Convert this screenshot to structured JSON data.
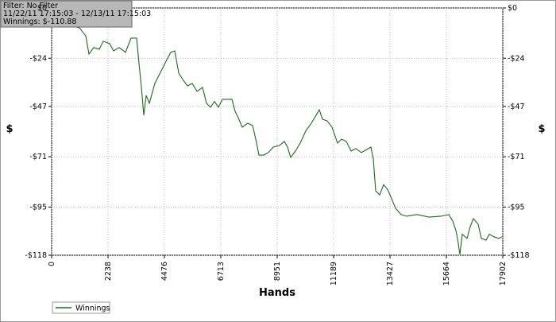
{
  "chart_data": {
    "type": "line",
    "info": [
      "Filter: No Filter",
      "11/22/11 17:15:03 - 12/13/11 17:15:03",
      "Winnings: $-110.88"
    ],
    "xlabel": "Hands",
    "ylabel": "$",
    "xlim": [
      0,
      17902
    ],
    "xticks": [
      0,
      2238,
      4476,
      6713,
      8951,
      11189,
      13427,
      15664,
      17902
    ],
    "ylim": [
      -118,
      0
    ],
    "yticks": [
      {
        "value": 0,
        "label": "$0"
      },
      {
        "value": -24,
        "label": "-$24"
      },
      {
        "value": -47,
        "label": "-$47"
      },
      {
        "value": -71,
        "label": "-$71"
      },
      {
        "value": -95,
        "label": "-$95"
      },
      {
        "value": -118,
        "label": "-$118"
      }
    ],
    "grid": true,
    "legend": "bottom-left",
    "x": [
      882,
      1103,
      1355,
      1481,
      1670,
      1891,
      2049,
      2301,
      2458,
      2679,
      2931,
      3152,
      3373,
      3468,
      3562,
      3657,
      3751,
      3877,
      4097,
      4255,
      4413,
      4571,
      4728,
      4886,
      5044,
      5201,
      5390,
      5580,
      5769,
      5989,
      6146,
      6304,
      6462,
      6620,
      6777,
      6935,
      7154,
      7280,
      7406,
      7564,
      7785,
      7974,
      8100,
      8226,
      8415,
      8604,
      8793,
      9045,
      9234,
      9360,
      9486,
      9675,
      9864,
      10085,
      10306,
      10495,
      10621,
      10747,
      10936,
      11125,
      11346,
      11504,
      11693,
      11882,
      12071,
      12292,
      12513,
      12670,
      12765,
      12859,
      13017,
      13174,
      13332,
      13489,
      13647,
      13868,
      14088,
      14498,
      14970,
      15443,
      15759,
      15916,
      16042,
      16105,
      16200,
      16295,
      16484,
      16610,
      16736,
      16925,
      17051,
      17240,
      17366,
      17555,
      17744,
      17870
    ],
    "series": [
      {
        "name": "Winnings",
        "color": "#1a6b1a",
        "values": [
          -8.7,
          -9.5,
          -13.3,
          -22,
          -18.9,
          -19.7,
          -15.9,
          -17,
          -20.5,
          -18.9,
          -21.2,
          -14.4,
          -14.4,
          -26.6,
          -37.9,
          -51.2,
          -41.7,
          -45.5,
          -36,
          -32.2,
          -28.5,
          -24.7,
          -21.2,
          -20.5,
          -31.1,
          -34.1,
          -37.2,
          -36,
          -39.8,
          -37.9,
          -45.5,
          -47.4,
          -44.6,
          -47.4,
          -43.6,
          -43.6,
          -43.6,
          -49.3,
          -52.4,
          -56.9,
          -55,
          -56.1,
          -62.6,
          -70.2,
          -70.2,
          -69,
          -66.4,
          -65.6,
          -63.7,
          -66.4,
          -71.3,
          -68.3,
          -64.5,
          -58.7,
          -55,
          -51.2,
          -48.6,
          -53.1,
          -53.9,
          -56.9,
          -64.5,
          -62.6,
          -63.7,
          -68.3,
          -67.1,
          -69,
          -67.5,
          -66.4,
          -72.1,
          -87.3,
          -89.2,
          -84.3,
          -86.6,
          -91,
          -95.6,
          -98.6,
          -99.4,
          -98.6,
          -99.8,
          -99.4,
          -98.6,
          -101.7,
          -106.2,
          -110,
          -117.6,
          -108,
          -110,
          -104.3,
          -100.5,
          -103.2,
          -110,
          -110.8,
          -108,
          -109.2,
          -110,
          -109.2
        ]
      }
    ]
  }
}
